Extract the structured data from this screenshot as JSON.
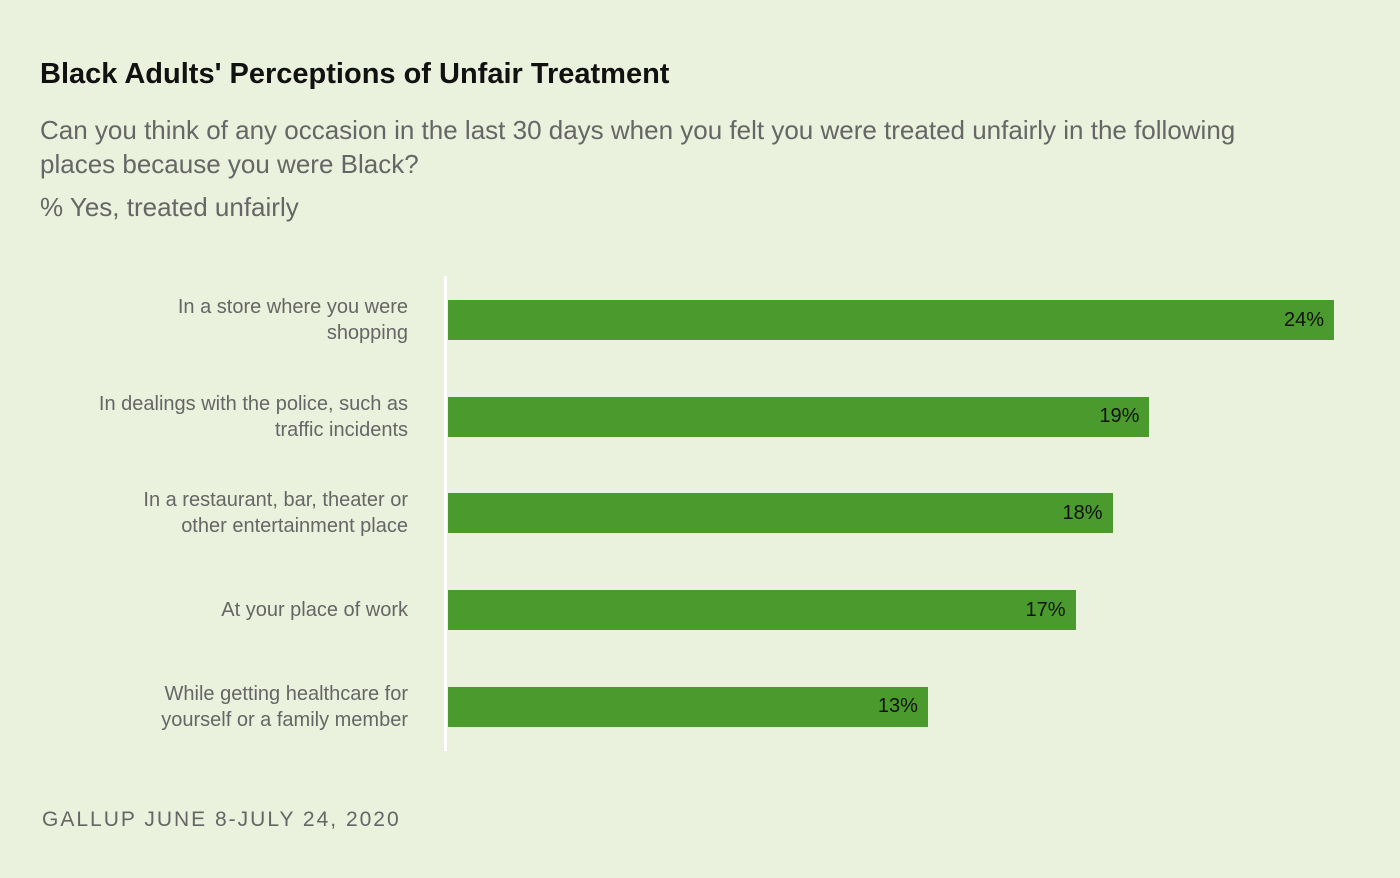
{
  "chart_data": {
    "type": "bar",
    "orientation": "horizontal",
    "title": "Black Adults' Perceptions of Unfair Treatment",
    "subtitle": "Can you think of any occasion in the last 30 days when you felt you were treated unfairly in the following places because you were Black?",
    "y_label": "% Yes, treated unfairly",
    "categories": [
      "In a store where you were shopping",
      "In dealings with the police, such as traffic incidents",
      "In a restaurant, bar, theater or other entertainment place",
      "At your place of work",
      "While getting healthcare for yourself or a family member"
    ],
    "values": [
      24,
      19,
      18,
      17,
      13
    ],
    "value_labels": [
      "24%",
      "19%",
      "18%",
      "17%",
      "13%"
    ],
    "color": "#4b9a2d",
    "source": "GALLUP JUNE 8-JULY 24, 2020"
  }
}
